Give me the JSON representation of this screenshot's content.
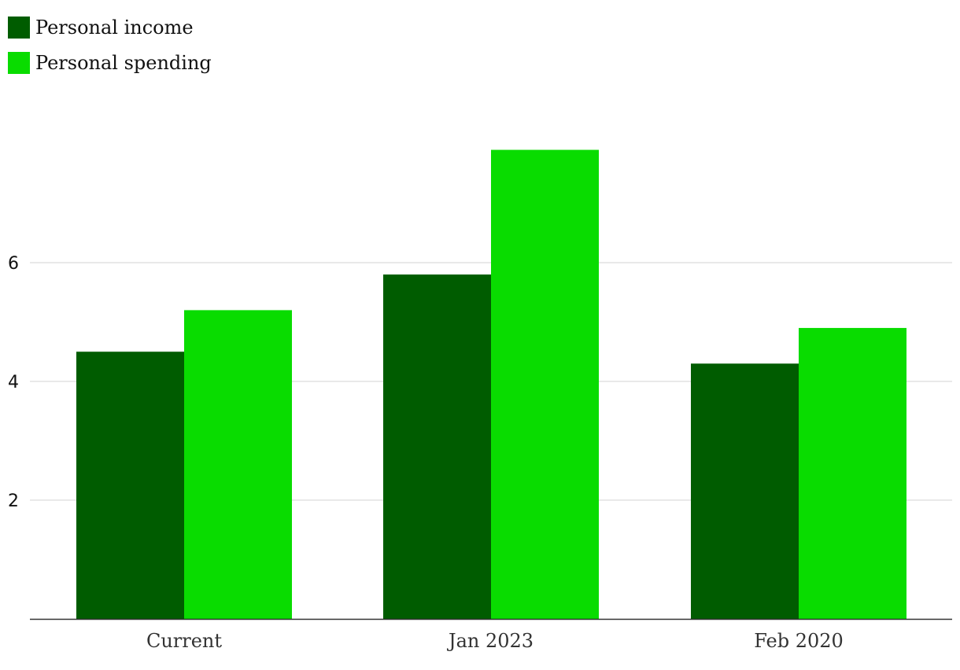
{
  "chart_data": {
    "type": "bar",
    "categories": [
      "Current",
      "Jan 2023",
      "Feb 2020"
    ],
    "series": [
      {
        "name": "Personal income",
        "values": [
          4.5,
          5.8,
          4.3
        ],
        "color": "#005c00"
      },
      {
        "name": "Personal spending",
        "values": [
          5.2,
          7.9,
          4.9
        ],
        "color": "#09dc00"
      }
    ],
    "y_ticks": [
      "2",
      "4",
      "6"
    ],
    "ylim": [
      0,
      8.3
    ],
    "grid": true,
    "legend_position": "top-left"
  }
}
